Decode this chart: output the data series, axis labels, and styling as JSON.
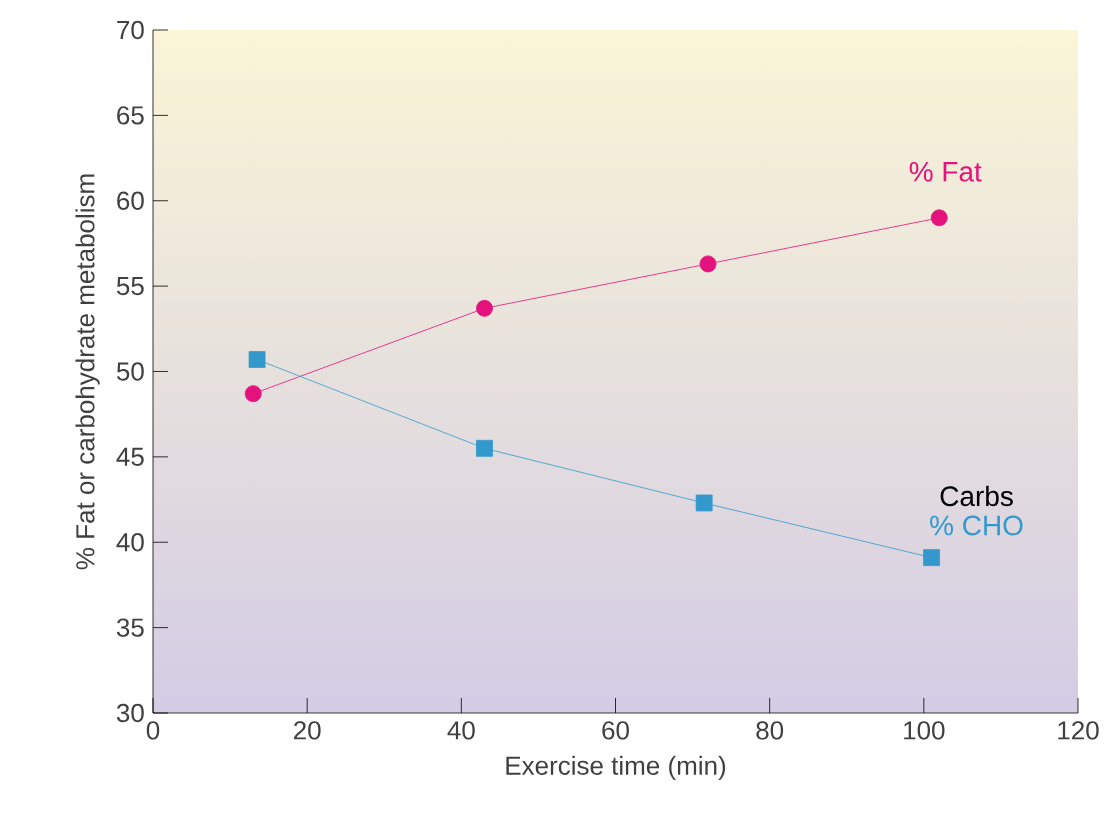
{
  "chart_data": {
    "type": "line",
    "xlabel": "Exercise time (min)",
    "ylabel": "% Fat or carbohydrate metabolism",
    "series": [
      {
        "name": "% Fat",
        "color": "#e5127d",
        "marker": "circle",
        "x": [
          13,
          43,
          72,
          102
        ],
        "values": [
          48.7,
          53.7,
          56.3,
          59.0
        ]
      },
      {
        "name": "% CHO",
        "color": "#3399cc",
        "marker": "square",
        "x": [
          13.5,
          43,
          71.5,
          101
        ],
        "values": [
          50.7,
          45.5,
          42.3,
          39.1
        ]
      }
    ],
    "annotations": [
      "Carbs"
    ],
    "xlim": [
      0,
      120
    ],
    "ylim": [
      30,
      70
    ],
    "xticks": [
      0,
      20,
      40,
      60,
      80,
      100,
      120
    ],
    "yticks": [
      30,
      35,
      40,
      45,
      50,
      55,
      60,
      65,
      70
    ],
    "grid": false
  }
}
